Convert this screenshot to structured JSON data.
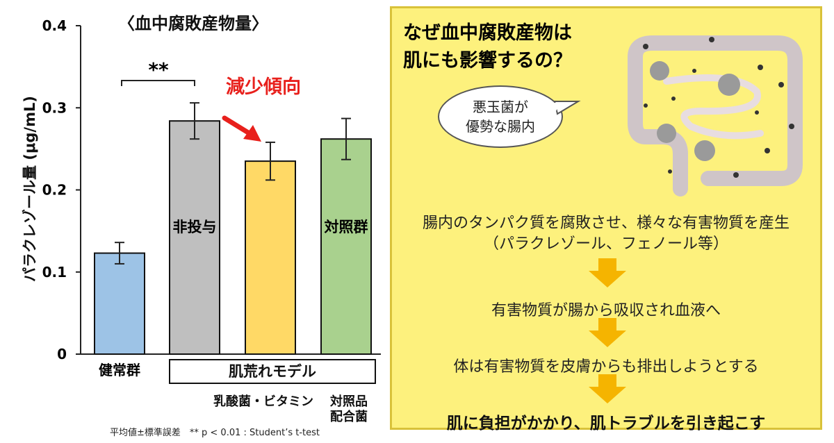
{
  "chart_data": {
    "type": "bar",
    "title": "〈血中腐敗産物量〉",
    "ylabel": "パラクレゾール量 (μg/mL)",
    "ylim": [
      0,
      0.4
    ],
    "yticks": [
      "0",
      "0.1",
      "0.2",
      "0.3",
      "0.4"
    ],
    "categories": [
      "健常群",
      "非投与",
      "",
      "対照群"
    ],
    "values": [
      0.123,
      0.284,
      0.235,
      0.262
    ],
    "errors": [
      0.013,
      0.022,
      0.023,
      0.025
    ],
    "colors": [
      "#9dc3e6",
      "#bfbfbf",
      "#ffd966",
      "#a9d18e"
    ],
    "annotation": "減少傾向",
    "significance": "**",
    "group_label": "肌荒れモデル",
    "sub_labels": [
      "乳酸菌・ビタミン",
      "対照品\n配合菌"
    ],
    "footnote": "平均値±標準誤差　** p < 0.01 : Student’s t-test"
  },
  "explain": {
    "title_line1": "なぜ血中腐敗産物は",
    "title_line2": "肌にも影響するの？",
    "bubble_line1": "悪玉菌が",
    "bubble_line2": "優勢な腸内",
    "step1_line1": "腸内のタンパク質を腐敗させ、様々な有害物質を産生",
    "step1_line2": "（パラクレゾール、フェノール等）",
    "step2": "有害物質が腸から吸収され血液へ",
    "step3": "体は有害物質を皮膚からも排出しようとする",
    "step4": "肌に負担がかかり、肌トラブルを引き起こす",
    "arrow_color": "#f5b400"
  }
}
